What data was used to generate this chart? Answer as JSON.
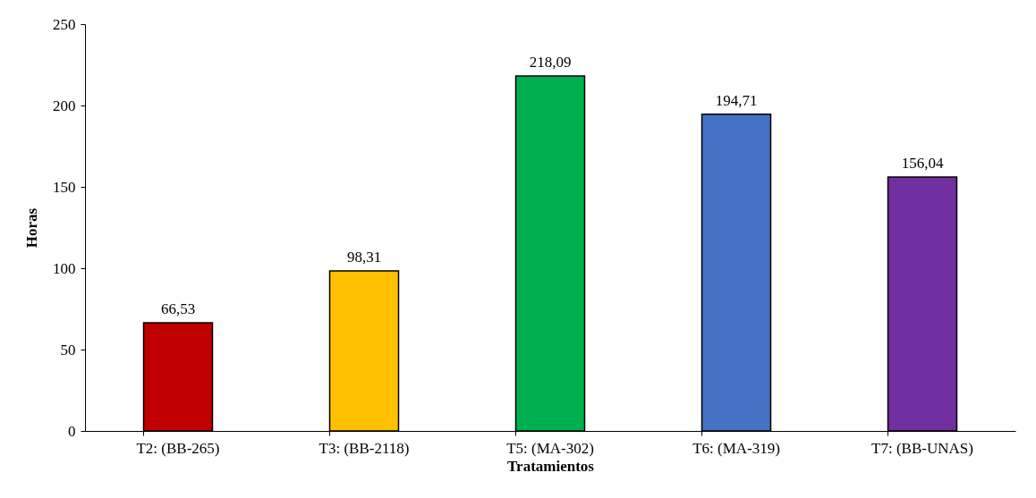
{
  "chart_data": {
    "type": "bar",
    "xlabel": "Tratamientos",
    "ylabel": "Horas",
    "categories": [
      "T2: (BB-265)",
      "T3: (BB-2118)",
      "T5: (MA-302)",
      "T6: (MA-319)",
      "T7: (BB-UNAS)"
    ],
    "values": [
      66.53,
      98.31,
      218.09,
      194.71,
      156.04
    ],
    "value_labels": [
      "66,53",
      "98,31",
      "218,09",
      "194,71",
      "156,04"
    ],
    "colors": [
      "#c00000",
      "#ffc000",
      "#00b050",
      "#4472c4",
      "#7030a0"
    ],
    "ylim": [
      0,
      250
    ],
    "yticks": [
      0,
      50,
      100,
      150,
      200,
      250
    ],
    "grid": false
  }
}
